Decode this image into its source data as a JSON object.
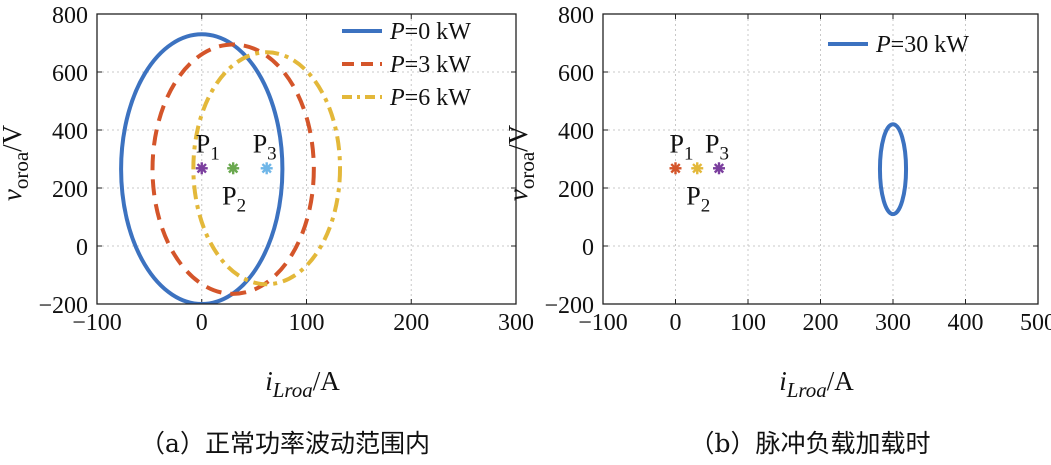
{
  "chart_data": [
    {
      "type": "line",
      "panel": "a",
      "caption": "（a）正常功率波动范围内",
      "xlabel": {
        "main": "i",
        "sub": "Lroa",
        "unit": "/A"
      },
      "ylabel": {
        "main": "v",
        "sub": "oroa",
        "unit": "/V"
      },
      "xlim": [
        -100,
        300
      ],
      "ylim": [
        -200,
        800
      ],
      "xticks": [
        -100,
        0,
        100,
        200,
        300
      ],
      "yticks": [
        -200,
        0,
        200,
        400,
        600,
        800
      ],
      "xtick_labels": [
        "−100",
        "0",
        "100",
        "200",
        "300"
      ],
      "ytick_labels": [
        "−200",
        "0",
        "200",
        "400",
        "600",
        "800"
      ],
      "grid": true,
      "legend_position": "top-right",
      "series": [
        {
          "name": "P=0 kW",
          "label_italic": "P",
          "label_rest": "=0 kW",
          "color": "#3c72c0",
          "style": "solid",
          "ellipse": {
            "cx": 0,
            "cy": 265,
            "rx": 77,
            "ry": 465
          }
        },
        {
          "name": "P=3 kW",
          "label_italic": "P",
          "label_rest": "=3 kW",
          "color": "#d4552a",
          "style": "dashed",
          "ellipse": {
            "cx": 30,
            "cy": 265,
            "rx": 77,
            "ry": 430
          }
        },
        {
          "name": "P=6 kW",
          "label_italic": "P",
          "label_rest": "=6 kW",
          "color": "#e3b83a",
          "style": "dashdot",
          "ellipse": {
            "cx": 62,
            "cy": 268,
            "rx": 70,
            "ry": 400
          }
        }
      ],
      "points": [
        {
          "label": "P",
          "sub": "1",
          "x": 0,
          "y": 268,
          "color": "#7b3f9e"
        },
        {
          "label": "P",
          "sub": "2",
          "x": 30,
          "y": 268,
          "color": "#6aa84f"
        },
        {
          "label": "P",
          "sub": "3",
          "x": 62,
          "y": 268,
          "color": "#6fb6e8"
        }
      ]
    },
    {
      "type": "line",
      "panel": "b",
      "caption": "（b）脉冲负载加载时",
      "xlabel": {
        "main": "i",
        "sub": "Lroa",
        "unit": "/A"
      },
      "ylabel": {
        "main": "v",
        "sub": "oroa",
        "unit": "/V"
      },
      "xlim": [
        -100,
        500
      ],
      "ylim": [
        -200,
        800
      ],
      "xticks": [
        -100,
        0,
        100,
        200,
        300,
        400,
        500
      ],
      "yticks": [
        -200,
        0,
        200,
        400,
        600,
        800
      ],
      "xtick_labels": [
        "−100",
        "0",
        "100",
        "200",
        "300",
        "400",
        "500"
      ],
      "ytick_labels": [
        "−200",
        "0",
        "200",
        "400",
        "600",
        "800"
      ],
      "grid": true,
      "legend_position": "top-right",
      "series": [
        {
          "name": "P=30 kW",
          "label_italic": "P",
          "label_rest": "=30 kW",
          "color": "#3c72c0",
          "style": "solid",
          "ellipse": {
            "cx": 300,
            "cy": 265,
            "rx": 18,
            "ry": 155
          }
        }
      ],
      "points": [
        {
          "label": "P",
          "sub": "1",
          "x": 0,
          "y": 268,
          "color": "#d4552a"
        },
        {
          "label": "P",
          "sub": "2",
          "x": 30,
          "y": 268,
          "color": "#e3b83a"
        },
        {
          "label": "P",
          "sub": "3",
          "x": 60,
          "y": 268,
          "color": "#7b3f9e"
        }
      ]
    }
  ]
}
